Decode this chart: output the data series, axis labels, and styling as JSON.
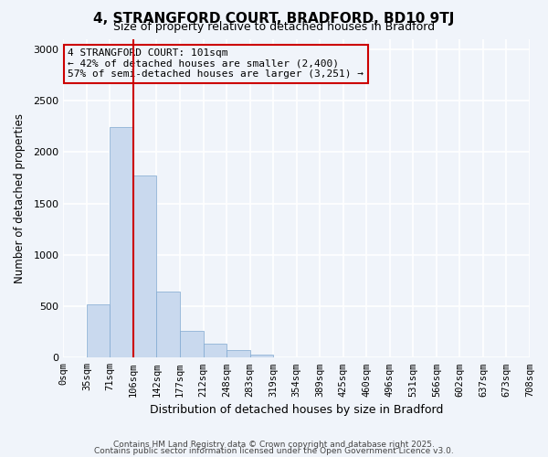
{
  "title": "4, STRANGFORD COURT, BRADFORD, BD10 9TJ",
  "subtitle": "Size of property relative to detached houses in Bradford",
  "bar_values": [
    0,
    520,
    2240,
    1770,
    640,
    260,
    140,
    75,
    25,
    0,
    0,
    0,
    0,
    0,
    0,
    0,
    0,
    0,
    0,
    0
  ],
  "bin_labels": [
    "0sqm",
    "35sqm",
    "71sqm",
    "106sqm",
    "142sqm",
    "177sqm",
    "212sqm",
    "248sqm",
    "283sqm",
    "319sqm",
    "354sqm",
    "389sqm",
    "425sqm",
    "460sqm",
    "496sqm",
    "531sqm",
    "566sqm",
    "602sqm",
    "637sqm",
    "673sqm",
    "708sqm"
  ],
  "bar_color": "#c9d9ee",
  "bar_edge_color": "#7fa8d0",
  "vline_x": 3,
  "vline_color": "#cc0000",
  "annotation_title": "4 STRANGFORD COURT: 101sqm",
  "annotation_line1": "← 42% of detached houses are smaller (2,400)",
  "annotation_line2": "57% of semi-detached houses are larger (3,251) →",
  "annotation_box_color": "#cc0000",
  "xlabel": "Distribution of detached houses by size in Bradford",
  "ylabel": "Number of detached properties",
  "ylim": [
    0,
    3100
  ],
  "yticks": [
    0,
    500,
    1000,
    1500,
    2000,
    2500,
    3000
  ],
  "footer1": "Contains HM Land Registry data © Crown copyright and database right 2025.",
  "footer2": "Contains public sector information licensed under the Open Government Licence v3.0.",
  "bg_color": "#f0f4fa",
  "grid_color": "#ffffff"
}
